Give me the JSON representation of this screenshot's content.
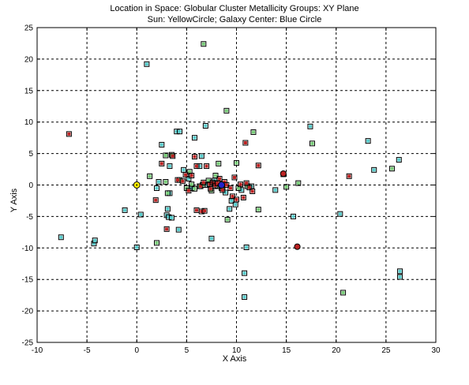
{
  "chart_data": {
    "type": "scatter",
    "title": "Location in Space: Globular Cluster Metallicity Groups: XY Plane",
    "subtitle": "Sun: YellowCircle; Galaxy Center: Blue Circle",
    "xlabel": "X Axis",
    "ylabel": "Y Axis",
    "xlim": [
      -10,
      30
    ],
    "ylim": [
      -25,
      25
    ],
    "xticks": [
      -10,
      -5,
      0,
      5,
      10,
      15,
      20,
      25,
      30
    ],
    "yticks": [
      -25,
      -20,
      -15,
      -10,
      -5,
      0,
      5,
      10,
      15,
      20,
      25
    ],
    "grid": true,
    "grid_style": "dashed",
    "colors": {
      "cyan": "#55cccc",
      "green": "#77cc77",
      "red": "#bb2222",
      "sun": "#ffee00",
      "center": "#2222cc",
      "marker_edge": "#000000",
      "grid": "#000000"
    },
    "series": [
      {
        "color_key": "cyan",
        "marker": "square",
        "points": [
          [
            -7.6,
            -8.3
          ],
          [
            -4.3,
            -9.3
          ],
          [
            -4.2,
            -8.8
          ],
          [
            -1.2,
            -4
          ],
          [
            0,
            -9.9
          ],
          [
            0.4,
            -4.7
          ],
          [
            1,
            19.2
          ],
          [
            2,
            -0.5
          ],
          [
            2.2,
            0.5
          ],
          [
            2.5,
            6.4
          ],
          [
            3,
            -4.8
          ],
          [
            3.1,
            -3.8
          ],
          [
            3.2,
            -5.1
          ],
          [
            3.3,
            3
          ],
          [
            3.3,
            -1.3
          ],
          [
            3.5,
            -5.2
          ],
          [
            4,
            8.5
          ],
          [
            4.2,
            -7.1
          ],
          [
            4.3,
            8.5
          ],
          [
            4.7,
            2.4
          ],
          [
            5.2,
            1
          ],
          [
            5.5,
            -0.5
          ],
          [
            5.8,
            7.5
          ],
          [
            6.3,
            3
          ],
          [
            6.5,
            4.6
          ],
          [
            6.9,
            9.4
          ],
          [
            7.1,
            0
          ],
          [
            7.5,
            -8.5
          ],
          [
            7.8,
            0.7
          ],
          [
            8.1,
            -0.2
          ],
          [
            8.5,
            -0.5
          ],
          [
            8.9,
            -1.2
          ],
          [
            9.3,
            -3.8
          ],
          [
            9.5,
            -2.5
          ],
          [
            9.9,
            -3.1
          ],
          [
            10.5,
            -0.8
          ],
          [
            10.8,
            -14
          ],
          [
            10.8,
            -17.8
          ],
          [
            11,
            -9.9
          ],
          [
            11.5,
            -0.2
          ],
          [
            13.9,
            -0.8
          ],
          [
            15.7,
            -5
          ],
          [
            17.4,
            9.3
          ],
          [
            20.4,
            -4.6
          ],
          [
            23.2,
            7
          ],
          [
            23.8,
            2.4
          ],
          [
            26.3,
            4
          ],
          [
            26.4,
            -13.7
          ],
          [
            26.4,
            -14.6
          ]
        ]
      },
      {
        "color_key": "green",
        "marker": "square",
        "points": [
          [
            1.3,
            1.4
          ],
          [
            2,
            -9.2
          ],
          [
            2.9,
            4.7
          ],
          [
            2.9,
            0.5
          ],
          [
            3.1,
            -1.3
          ],
          [
            3.5,
            4.8
          ],
          [
            4.3,
            0.8
          ],
          [
            5,
            -0.5
          ],
          [
            5.3,
            2.1
          ],
          [
            5.5,
            0.1
          ],
          [
            5.8,
            -0.6
          ],
          [
            6.3,
            -0.2
          ],
          [
            6.6,
            0
          ],
          [
            6.7,
            22.4
          ],
          [
            7.2,
            0.7
          ],
          [
            7.5,
            -0.9
          ],
          [
            7.9,
            1.5
          ],
          [
            8.2,
            3.4
          ],
          [
            8.6,
            -0.3
          ],
          [
            9,
            11.8
          ],
          [
            9.1,
            -5.5
          ],
          [
            10,
            3.5
          ],
          [
            10.2,
            -0.5
          ],
          [
            11.1,
            -0.2
          ],
          [
            11.7,
            8.4
          ],
          [
            12.2,
            -3.9
          ],
          [
            15,
            -0.3
          ],
          [
            16.2,
            0.3
          ],
          [
            17.6,
            6.6
          ],
          [
            20.7,
            -17.1
          ],
          [
            25.6,
            2.6
          ]
        ]
      },
      {
        "color_key": "red",
        "marker": "square",
        "points": [
          [
            -6.8,
            8.1
          ],
          [
            1.9,
            -2.4
          ],
          [
            2.5,
            3.4
          ],
          [
            3,
            -7
          ],
          [
            3.6,
            4.6
          ],
          [
            4.1,
            0.8
          ],
          [
            4.6,
            0.6
          ],
          [
            4.9,
            1.6
          ],
          [
            5.2,
            -0.9
          ],
          [
            5.5,
            1.5
          ],
          [
            5.8,
            4.5
          ],
          [
            6,
            3
          ],
          [
            6,
            -4
          ],
          [
            6.4,
            -0.2
          ],
          [
            6.5,
            -4.2
          ],
          [
            6.7,
            0.4
          ],
          [
            6.8,
            -4.1
          ],
          [
            7,
            3
          ],
          [
            7.3,
            0.1
          ],
          [
            7.4,
            -0.6
          ],
          [
            7.6,
            0.4
          ],
          [
            7.8,
            0.2
          ],
          [
            7.9,
            -0.1
          ],
          [
            8.1,
            0.3
          ],
          [
            8.3,
            1
          ],
          [
            8.6,
            -0.8
          ],
          [
            8.8,
            0.5
          ],
          [
            9,
            0
          ],
          [
            9.4,
            -0.5
          ],
          [
            9.6,
            -1.8
          ],
          [
            9.8,
            1.2
          ],
          [
            10,
            -2.3
          ],
          [
            10.4,
            0.1
          ],
          [
            10.7,
            -2
          ],
          [
            10.9,
            6.7
          ],
          [
            11,
            0.3
          ],
          [
            11.3,
            -0.4
          ],
          [
            11.6,
            -1
          ],
          [
            12.2,
            3.1
          ],
          [
            14.7,
            1.7
          ],
          [
            21.3,
            1.4
          ]
        ]
      },
      {
        "color_key": "red",
        "marker": "circle",
        "points": [
          [
            14.7,
            1.8
          ],
          [
            16.1,
            -9.8
          ]
        ]
      }
    ],
    "sun": {
      "x": 0,
      "y": 0,
      "color_key": "sun",
      "marker": "circle"
    },
    "galaxy_center": {
      "x": 8.5,
      "y": 0,
      "color_key": "center",
      "marker": "circle"
    }
  }
}
